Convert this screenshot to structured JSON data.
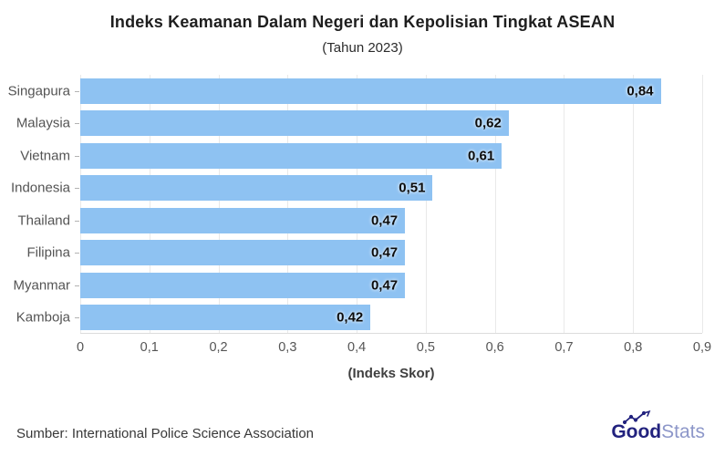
{
  "header": {
    "title": "Indeks Keamanan Dalam Negeri dan Kepolisian Tingkat ASEAN",
    "subtitle": "(Tahun 2023)"
  },
  "chart_data": {
    "type": "bar",
    "orientation": "horizontal",
    "title": "Indeks Keamanan Dalam Negeri dan Kepolisian Tingkat ASEAN",
    "subtitle": "(Tahun 2023)",
    "categories": [
      "Singapura",
      "Malaysia",
      "Vietnam",
      "Indonesia",
      "Thailand",
      "Filipina",
      "Myanmar",
      "Kamboja"
    ],
    "values": [
      0.84,
      0.62,
      0.61,
      0.51,
      0.47,
      0.47,
      0.47,
      0.42
    ],
    "value_labels": [
      "0,84",
      "0,62",
      "0,61",
      "0,51",
      "0,47",
      "0,47",
      "0,47",
      "0,42"
    ],
    "xlabel": "(Indeks Skor)",
    "ylabel": "",
    "xlim": [
      0,
      0.9
    ],
    "tick_labels": [
      "0",
      "0,1",
      "0,2",
      "0,3",
      "0,4",
      "0,5",
      "0,6",
      "0,7",
      "0,8",
      "0,9"
    ],
    "grid": true,
    "legend": false
  },
  "footer": {
    "source": "Sumber: International Police Science Association",
    "logo": {
      "good": "Good",
      "stats": "Stats"
    }
  },
  "colors": {
    "bar": "#8ec2f2",
    "gridline": "#e9e9e9",
    "logo_good": "#22227e",
    "logo_stats": "#8d97c9"
  }
}
